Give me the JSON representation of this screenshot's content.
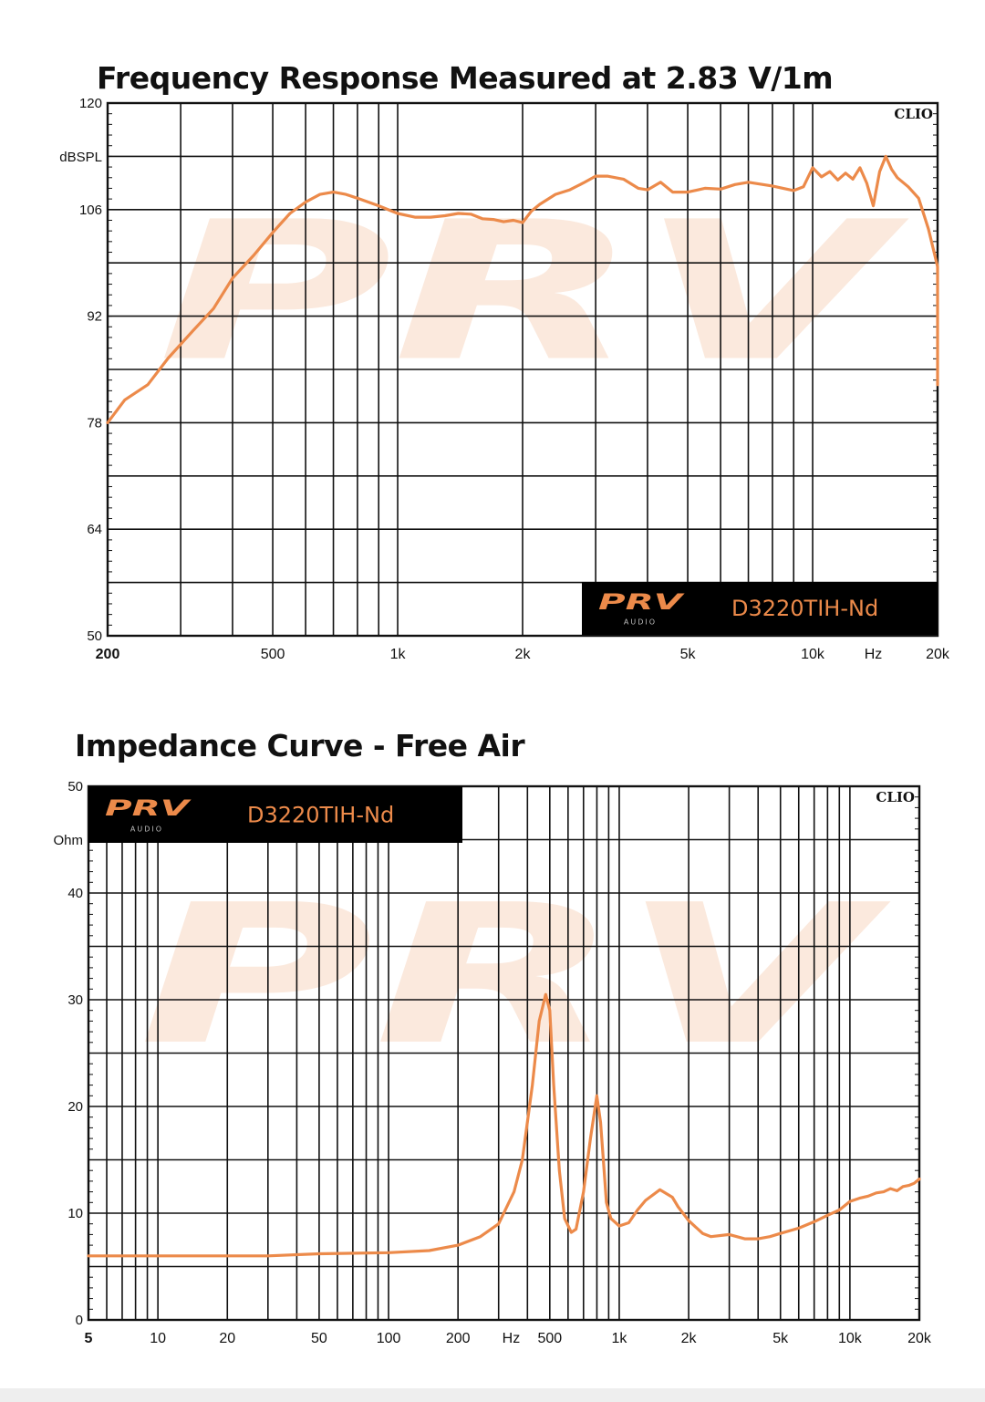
{
  "colors": {
    "curve": "#ec8a4a",
    "grid": "#111111",
    "plot_bg": "#ffffff",
    "badge_bg": "#000000",
    "badge_text": "#ec8a4a",
    "watermark": "#fbe9dd"
  },
  "brand": {
    "logo_text": "PRV",
    "logo_sub": "AUDIO",
    "model": "D3220TIH-Nd",
    "clio": "CLIO"
  },
  "chart_data": [
    {
      "type": "line",
      "title": "Frequency Response Measured at 2.83 V/1m",
      "ylabel": "dBSPL",
      "x_unit_label": "Hz",
      "x_scale": "log",
      "xlim": [
        200,
        20000
      ],
      "ylim": [
        50,
        120
      ],
      "yticks": [
        {
          "value": 120,
          "label": "120"
        },
        {
          "value": 106,
          "label": "106"
        },
        {
          "value": 92,
          "label": "92"
        },
        {
          "value": 78,
          "label": "78"
        },
        {
          "value": 64,
          "label": "64"
        },
        {
          "value": 50,
          "label": "50"
        }
      ],
      "xticks": [
        {
          "value": 200,
          "label": "200"
        },
        {
          "value": 500,
          "label": "500"
        },
        {
          "value": 1000,
          "label": "1k"
        },
        {
          "value": 2000,
          "label": "2k"
        },
        {
          "value": 5000,
          "label": "5k"
        },
        {
          "value": 10000,
          "label": "10k"
        },
        {
          "value": 20000,
          "label": "20k"
        }
      ],
      "grid": true,
      "badge_position": "bottom-right",
      "series": [
        {
          "x": [
            200,
            220,
            250,
            280,
            320,
            360,
            400,
            450,
            500,
            550,
            600,
            650,
            700,
            750,
            800,
            900,
            1000,
            1100,
            1200,
            1300,
            1400,
            1500,
            1600,
            1700,
            1800,
            1900,
            2000,
            2100,
            2200,
            2400,
            2600,
            2800,
            3000,
            3200,
            3500,
            3800,
            4000,
            4300,
            4600,
            5000,
            5500,
            6000,
            6500,
            7000,
            8000,
            9000,
            9500,
            10000,
            10500,
            11000,
            11500,
            12000,
            12500,
            13000,
            13500,
            14000,
            14500,
            15000,
            15500,
            16000,
            17000,
            18000,
            19000,
            20000,
            21000
          ],
          "y": [
            78,
            81,
            83,
            86.5,
            90,
            93,
            97,
            100,
            103,
            105.5,
            107,
            108,
            108.3,
            108,
            107.5,
            106.5,
            105.5,
            105,
            105,
            105.2,
            105.5,
            105.4,
            104.8,
            104.7,
            104.4,
            104.6,
            104.3,
            105.8,
            106.7,
            108,
            108.6,
            109.5,
            110.4,
            110.4,
            110,
            108.8,
            108.6,
            109.6,
            108.3,
            108.3,
            108.8,
            108.7,
            109.3,
            109.6,
            109.1,
            108.5,
            109,
            111.5,
            110.3,
            111,
            109.9,
            110.8,
            110,
            111.5,
            109.5,
            106.5,
            111,
            113,
            111.3,
            110.2,
            109,
            107.5,
            103.5,
            98.5,
            83
          ]
        }
      ]
    },
    {
      "type": "line",
      "title": "Impedance Curve - Free Air",
      "ylabel": "Ohm",
      "x_unit_label": "Hz",
      "x_scale": "log",
      "xlim": [
        5,
        20000
      ],
      "ylim": [
        0,
        50
      ],
      "yticks": [
        {
          "value": 50,
          "label": "50"
        },
        {
          "value": 40,
          "label": "40"
        },
        {
          "value": 30,
          "label": "30"
        },
        {
          "value": 20,
          "label": "20"
        },
        {
          "value": 10,
          "label": "10"
        },
        {
          "value": 0,
          "label": "0"
        }
      ],
      "xticks": [
        {
          "value": 5,
          "label": "5"
        },
        {
          "value": 10,
          "label": "10"
        },
        {
          "value": 20,
          "label": "20"
        },
        {
          "value": 50,
          "label": "50"
        },
        {
          "value": 100,
          "label": "100"
        },
        {
          "value": 200,
          "label": "200"
        },
        {
          "value": 500,
          "label": "500"
        },
        {
          "value": 1000,
          "label": "1k"
        },
        {
          "value": 2000,
          "label": "2k"
        },
        {
          "value": 5000,
          "label": "5k"
        },
        {
          "value": 10000,
          "label": "10k"
        },
        {
          "value": 20000,
          "label": "20k"
        }
      ],
      "grid": true,
      "badge_position": "top-left",
      "series": [
        {
          "x": [
            5,
            10,
            20,
            30,
            50,
            100,
            150,
            200,
            250,
            300,
            350,
            380,
            420,
            450,
            480,
            500,
            520,
            550,
            580,
            620,
            650,
            700,
            750,
            800,
            830,
            850,
            880,
            920,
            1000,
            1100,
            1200,
            1300,
            1500,
            1700,
            1800,
            2000,
            2300,
            2500,
            3000,
            3500,
            4000,
            4500,
            5000,
            6000,
            7000,
            8000,
            9000,
            10000,
            11000,
            12000,
            13000,
            14000,
            15000,
            16000,
            17000,
            18000,
            19000,
            20000
          ],
          "y": [
            6,
            6,
            6,
            6,
            6.2,
            6.3,
            6.5,
            7,
            7.8,
            9,
            12,
            15,
            22,
            28,
            30.5,
            29,
            22,
            14,
            9.5,
            8.2,
            8.5,
            12,
            17,
            21,
            18.5,
            15.5,
            11,
            9.5,
            8.8,
            9.1,
            10.3,
            11.2,
            12.2,
            11.5,
            10.6,
            9.3,
            8.1,
            7.8,
            8,
            7.6,
            7.6,
            7.8,
            8.1,
            8.6,
            9.2,
            9.8,
            10.3,
            11.1,
            11.4,
            11.6,
            11.9,
            12,
            12.3,
            12.1,
            12.5,
            12.6,
            12.8,
            13.2
          ]
        }
      ]
    }
  ]
}
